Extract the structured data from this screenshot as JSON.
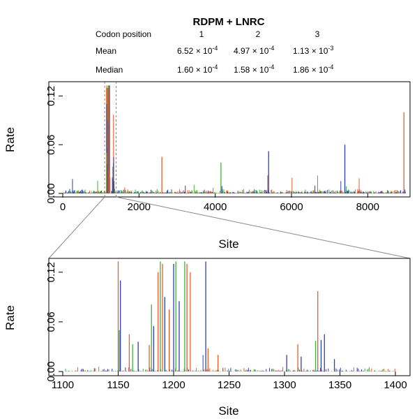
{
  "chart_data": [
    {
      "type": "bar",
      "title": "RDPM + LNRC",
      "xlabel": "Site",
      "ylabel": "Rate",
      "xlim": [
        0,
        9000
      ],
      "ylim": [
        0,
        0.135
      ],
      "xticks": [
        "0",
        "2000",
        "4000",
        "6000",
        "8000"
      ],
      "yticks": [
        "0.00",
        "0.06",
        "0.12"
      ],
      "series": [
        {
          "name": "Codon position 1",
          "color": "#f05a28"
        },
        {
          "name": "Codon position 2",
          "color": "#3db23d"
        },
        {
          "name": "Codon position 3",
          "color": "#2b3fb5"
        }
      ],
      "zoom_window": [
        1100,
        1400
      ],
      "notable_spikes": [
        {
          "x": 1150,
          "y": 0.13,
          "series": 1
        },
        {
          "x": 1170,
          "y": 0.13,
          "series": 2
        },
        {
          "x": 1200,
          "y": 0.13,
          "series": 3
        },
        {
          "x": 1330,
          "y": 0.035,
          "series": 1
        },
        {
          "x": 2600,
          "y": 0.045,
          "series": 1
        },
        {
          "x": 4150,
          "y": 0.038,
          "series": 2
        },
        {
          "x": 5400,
          "y": 0.052,
          "series": 3
        },
        {
          "x": 7400,
          "y": 0.06,
          "series": 3
        },
        {
          "x": 8950,
          "y": 0.1,
          "series": 1
        }
      ]
    },
    {
      "type": "bar",
      "xlabel": "Site",
      "ylabel": "Rate",
      "xlim": [
        1100,
        1400
      ],
      "ylim": [
        0,
        0.135
      ],
      "xticks": [
        "1100",
        "1150",
        "1200",
        "1250",
        "1300",
        "1350",
        "1400"
      ],
      "yticks": [
        "0.00",
        "0.06",
        "0.12"
      ],
      "series": [
        {
          "name": "Codon position 1",
          "color": "#f05a28"
        },
        {
          "name": "Codon position 2",
          "color": "#3db23d"
        },
        {
          "name": "Codon position 3",
          "color": "#2b3fb5"
        }
      ],
      "spikes": [
        {
          "x": 1150,
          "y": 0.133,
          "series": 1
        },
        {
          "x": 1152,
          "y": 0.11,
          "series": 3
        },
        {
          "x": 1151,
          "y": 0.05,
          "series": 2
        },
        {
          "x": 1160,
          "y": 0.045,
          "series": 1
        },
        {
          "x": 1163,
          "y": 0.033,
          "series": 2
        },
        {
          "x": 1168,
          "y": 0.036,
          "series": 3
        },
        {
          "x": 1178,
          "y": 0.032,
          "series": 1
        },
        {
          "x": 1180,
          "y": 0.081,
          "series": 2
        },
        {
          "x": 1182,
          "y": 0.055,
          "series": 3
        },
        {
          "x": 1186,
          "y": 0.12,
          "series": 1
        },
        {
          "x": 1188,
          "y": 0.133,
          "series": 2
        },
        {
          "x": 1190,
          "y": 0.13,
          "series": 1
        },
        {
          "x": 1192,
          "y": 0.09,
          "series": 3
        },
        {
          "x": 1196,
          "y": 0.075,
          "series": 1
        },
        {
          "x": 1200,
          "y": 0.13,
          "series": 3
        },
        {
          "x": 1202,
          "y": 0.133,
          "series": 2
        },
        {
          "x": 1205,
          "y": 0.085,
          "series": 3
        },
        {
          "x": 1210,
          "y": 0.133,
          "series": 2
        },
        {
          "x": 1212,
          "y": 0.13,
          "series": 1
        },
        {
          "x": 1215,
          "y": 0.12,
          "series": 1
        },
        {
          "x": 1229,
          "y": 0.133,
          "series": 3
        },
        {
          "x": 1231,
          "y": 0.028,
          "series": 1
        },
        {
          "x": 1240,
          "y": 0.02,
          "series": 1
        },
        {
          "x": 1302,
          "y": 0.02,
          "series": 3
        },
        {
          "x": 1312,
          "y": 0.033,
          "series": 1
        },
        {
          "x": 1315,
          "y": 0.018,
          "series": 3
        },
        {
          "x": 1328,
          "y": 0.037,
          "series": 2
        },
        {
          "x": 1330,
          "y": 0.097,
          "series": 1
        },
        {
          "x": 1333,
          "y": 0.038,
          "series": 3
        },
        {
          "x": 1336,
          "y": 0.045,
          "series": 3
        },
        {
          "x": 1345,
          "y": 0.015,
          "series": 3
        }
      ]
    }
  ],
  "stats_table": {
    "header": [
      "Codon position",
      "1",
      "2",
      "3"
    ],
    "rows": [
      {
        "label": "Mean",
        "values": [
          {
            "mantissa": "6.52",
            "exponent": "-4"
          },
          {
            "mantissa": "4.97",
            "exponent": "-4"
          },
          {
            "mantissa": "1.13",
            "exponent": "-3"
          }
        ]
      },
      {
        "label": "Median",
        "values": [
          {
            "mantissa": "1.60",
            "exponent": "-4"
          },
          {
            "mantissa": "1.58",
            "exponent": "-4"
          },
          {
            "mantissa": "1.86",
            "exponent": "-4"
          }
        ]
      }
    ]
  }
}
